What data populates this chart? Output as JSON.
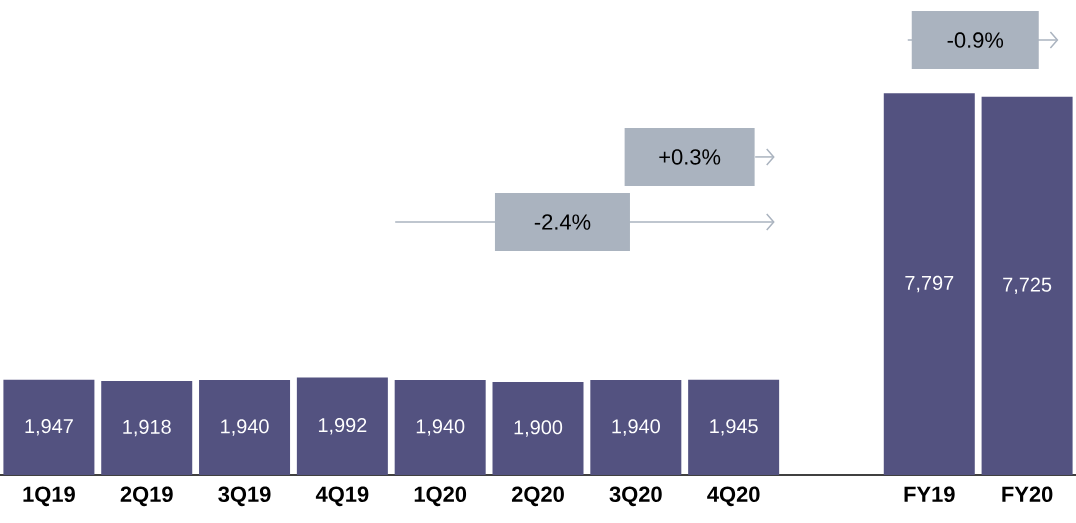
{
  "chart_data": {
    "type": "bar",
    "categories": [
      "1Q19",
      "2Q19",
      "3Q19",
      "4Q19",
      "1Q20",
      "2Q20",
      "3Q20",
      "4Q20",
      null,
      "FY19",
      "FY20"
    ],
    "values": [
      1947,
      1918,
      1940,
      1992,
      1940,
      1900,
      1940,
      1945,
      null,
      7797,
      7725
    ],
    "value_labels": [
      "1,947",
      "1,918",
      "1,940",
      "1,992",
      "1,940",
      "1,900",
      "1,940",
      "1,945",
      null,
      "7,797",
      "7,725"
    ],
    "color": "#535280",
    "annotations": [
      "-2.4%",
      "+0.3%",
      "-0.9%"
    ]
  }
}
